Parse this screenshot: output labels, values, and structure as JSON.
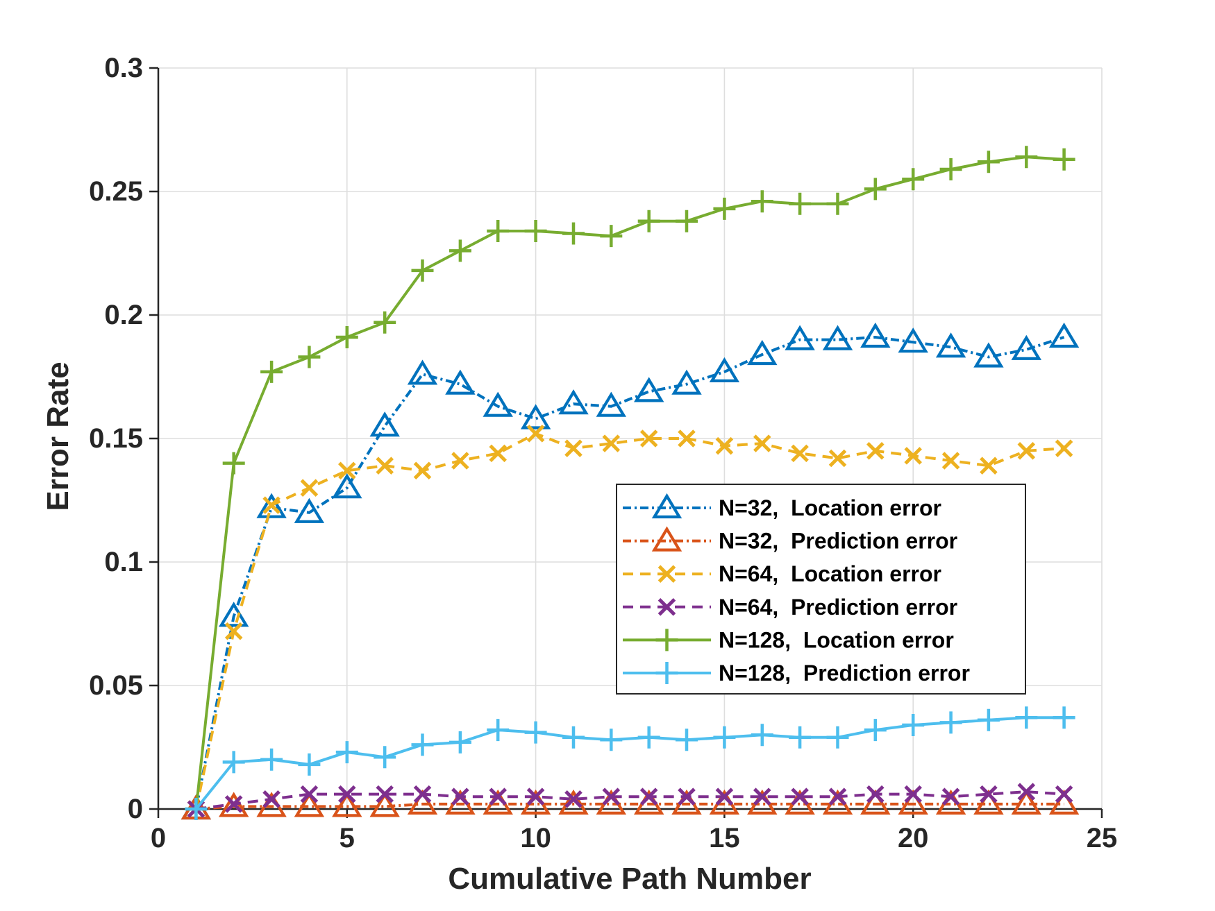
{
  "figure": {
    "background": "#FFFFFF"
  },
  "chart_data": {
    "type": "line",
    "title": "",
    "xlabel": "Cumulative Path Number",
    "ylabel": "Error Rate",
    "xlim": [
      0,
      25
    ],
    "ylim": [
      0,
      0.3
    ],
    "grid": true,
    "legend_position": "inside-right-middle",
    "axis_color": "#262626",
    "grid_color": "#DEDEDE",
    "x_tick_values": [
      0,
      5,
      10,
      15,
      20,
      25
    ],
    "x_tick_labels": [
      "0",
      "5",
      "10",
      "15",
      "20",
      "25"
    ],
    "y_tick_values": [
      0,
      0.05,
      0.1,
      0.15,
      0.2,
      0.25,
      0.3
    ],
    "y_tick_labels": [
      "0",
      "0.05",
      "0.1",
      "0.15",
      "0.2",
      "0.25",
      "0.3"
    ],
    "x": [
      1,
      2,
      3,
      4,
      5,
      6,
      7,
      8,
      9,
      10,
      11,
      12,
      13,
      14,
      15,
      16,
      17,
      18,
      19,
      20,
      21,
      22,
      23,
      24
    ],
    "series": [
      {
        "name": "N=32,  Location error",
        "color": "#0072BD",
        "line": "dashdot",
        "marker": "triangle",
        "values": [
          0,
          0.078,
          0.122,
          0.12,
          0.13,
          0.155,
          0.176,
          0.172,
          0.163,
          0.158,
          0.164,
          0.163,
          0.169,
          0.172,
          0.177,
          0.184,
          0.19,
          0.19,
          0.191,
          0.189,
          0.187,
          0.183,
          0.186,
          0.191
        ]
      },
      {
        "name": "N=32,  Prediction error",
        "color": "#D95319",
        "line": "dashdot",
        "marker": "triangle",
        "values": [
          0,
          0.001,
          0.001,
          0.001,
          0.001,
          0.001,
          0.002,
          0.002,
          0.002,
          0.002,
          0.002,
          0.002,
          0.002,
          0.002,
          0.002,
          0.002,
          0.002,
          0.002,
          0.002,
          0.002,
          0.002,
          0.002,
          0.002,
          0.002
        ]
      },
      {
        "name": "N=64,  Location error",
        "color": "#EDB120",
        "line": "dashed",
        "marker": "x",
        "values": [
          0,
          0.072,
          0.123,
          0.13,
          0.137,
          0.139,
          0.137,
          0.141,
          0.144,
          0.152,
          0.146,
          0.148,
          0.15,
          0.15,
          0.147,
          0.148,
          0.144,
          0.142,
          0.145,
          0.143,
          0.141,
          0.139,
          0.145,
          0.146
        ]
      },
      {
        "name": "N=64,  Prediction error",
        "color": "#7E2F8E",
        "line": "dashed",
        "marker": "x",
        "values": [
          0,
          0.002,
          0.004,
          0.006,
          0.006,
          0.006,
          0.006,
          0.005,
          0.005,
          0.005,
          0.004,
          0.005,
          0.005,
          0.005,
          0.005,
          0.005,
          0.005,
          0.005,
          0.006,
          0.006,
          0.005,
          0.006,
          0.007,
          0.006
        ]
      },
      {
        "name": "N=128,  Location error",
        "color": "#77AC30",
        "line": "solid",
        "marker": "plus",
        "values": [
          0,
          0.14,
          0.177,
          0.183,
          0.191,
          0.197,
          0.218,
          0.226,
          0.234,
          0.234,
          0.233,
          0.232,
          0.238,
          0.238,
          0.243,
          0.246,
          0.245,
          0.245,
          0.251,
          0.255,
          0.259,
          0.262,
          0.264,
          0.263
        ]
      },
      {
        "name": "N=128,  Prediction error",
        "color": "#4DBEEE",
        "line": "solid",
        "marker": "plus",
        "values": [
          0,
          0.019,
          0.02,
          0.018,
          0.023,
          0.021,
          0.026,
          0.027,
          0.032,
          0.031,
          0.029,
          0.028,
          0.029,
          0.028,
          0.029,
          0.03,
          0.029,
          0.029,
          0.032,
          0.034,
          0.035,
          0.036,
          0.037,
          0.037
        ]
      }
    ]
  }
}
